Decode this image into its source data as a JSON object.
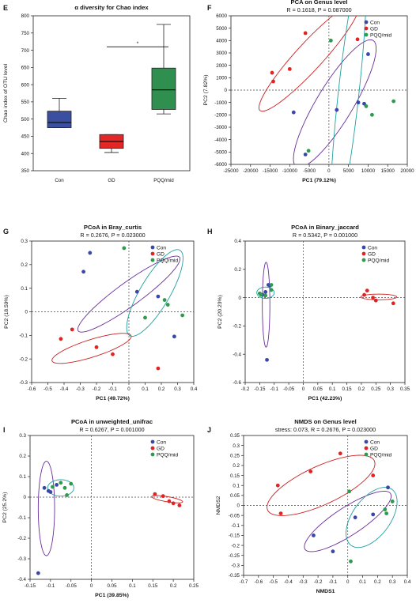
{
  "colors": {
    "Con": "#3a47a8",
    "GD": "#e02424",
    "PQQ/mid": "#2e9a4e",
    "Con_box": "#3b4fa0",
    "GD_box": "#e32626",
    "PQQ_box": "#2f8f4f",
    "ellipse_Con": "#6a2d9a",
    "ellipse_GD": "#cc2020",
    "ellipse_PQQ": "#1fa0a0"
  },
  "chart_data": [
    {
      "letter": "E",
      "type": "box",
      "title": "α diversity for Chao index",
      "subtitle": "",
      "ylabel": "Chao index of OTU level",
      "xlabel": "",
      "ylim": [
        350,
        800
      ],
      "yticks": [
        350,
        400,
        450,
        500,
        550,
        600,
        650,
        700,
        750,
        800
      ],
      "categories": [
        "Con",
        "GD",
        "PQQ/mid"
      ],
      "boxes": [
        {
          "group": "Con",
          "min": 475,
          "q1": 475,
          "median": 490,
          "q3": 523,
          "max": 560
        },
        {
          "group": "GD",
          "min": 403,
          "q1": 415,
          "median": 435,
          "q3": 455,
          "max": 455
        },
        {
          "group": "PQQ/mid",
          "min": 515,
          "q1": 528,
          "median": 585,
          "q3": 648,
          "max": 775
        }
      ],
      "significance": {
        "from": "GD",
        "to": "PQQ/mid",
        "y": 710,
        "label": "*"
      }
    },
    {
      "letter": "F",
      "type": "scatter",
      "title": "PCA on Genus level",
      "subtitle": "R = 0.1618, P = 0.087000",
      "xlabel": "PC1 (79.12%)",
      "ylabel": "PC2 (7.82%)",
      "xlim": [
        -25000,
        20000
      ],
      "ylim": [
        -6000,
        6000
      ],
      "xticks": [
        -25000,
        -20000,
        -15000,
        -10000,
        -5000,
        0,
        5000,
        10000,
        15000,
        20000
      ],
      "yticks": [
        -6000,
        -5000,
        -4000,
        -3000,
        -2000,
        -1000,
        0,
        1000,
        2000,
        3000,
        4000,
        5000,
        6000
      ],
      "legend": [
        "Con",
        "GD",
        "PQQ/mid"
      ],
      "points": {
        "Con": [
          [
            10000,
            2900
          ],
          [
            -9000,
            -1800
          ],
          [
            2000,
            -1600
          ],
          [
            7500,
            -1000
          ],
          [
            9000,
            -1100
          ],
          [
            -6000,
            -5200
          ]
        ],
        "GD": [
          [
            -6000,
            4600
          ],
          [
            -10000,
            1700
          ],
          [
            -14500,
            1400
          ],
          [
            -14200,
            700
          ],
          [
            7300,
            4100
          ]
        ],
        "PQQ/mid": [
          [
            500,
            4000
          ],
          [
            16500,
            -900
          ],
          [
            11000,
            -2000
          ],
          [
            9500,
            -1300
          ],
          [
            -5200,
            -4900
          ]
        ]
      },
      "ellipses": [
        {
          "group": "GD",
          "cx": -5000,
          "cy": 2700,
          "rx": 13500,
          "ry": 1500,
          "angle_deg": 18
        },
        {
          "group": "Con",
          "cx": 1500,
          "cy": -1100,
          "rx": 11500,
          "ry": 2400,
          "angle_deg": 24
        },
        {
          "group": "PQQ/mid",
          "cx": 5000,
          "cy": -300,
          "rx": 11500,
          "ry": 2500,
          "angle_deg": 70
        }
      ]
    },
    {
      "letter": "G",
      "type": "scatter",
      "title": "PCoA in Bray_curtis",
      "subtitle": "R = 0.2676, P = 0.023000",
      "xlabel": "PC1 (49.72%)",
      "ylabel": "PC2 (18.59%)",
      "xlim": [
        -0.6,
        0.4
      ],
      "ylim": [
        -0.3,
        0.3
      ],
      "xticks": [
        -0.6,
        -0.5,
        -0.4,
        -0.3,
        -0.2,
        -0.1,
        0,
        0.1,
        0.2,
        0.3,
        0.4
      ],
      "yticks": [
        -0.3,
        -0.2,
        -0.1,
        0,
        0.1,
        0.2,
        0.3
      ],
      "legend": [
        "Con",
        "GD",
        "PQQ/mid"
      ],
      "points": {
        "Con": [
          [
            -0.24,
            0.25
          ],
          [
            -0.28,
            0.17
          ],
          [
            0.05,
            0.085
          ],
          [
            0.18,
            0.065
          ],
          [
            0.28,
            -0.105
          ]
        ],
        "GD": [
          [
            -0.35,
            -0.075
          ],
          [
            -0.42,
            -0.115
          ],
          [
            -0.2,
            -0.15
          ],
          [
            -0.1,
            -0.18
          ],
          [
            0.18,
            -0.24
          ]
        ],
        "PQQ/mid": [
          [
            -0.03,
            0.27
          ],
          [
            0.22,
            0.05
          ],
          [
            0.24,
            0.03
          ],
          [
            0.33,
            -0.015
          ],
          [
            0.1,
            -0.025
          ]
        ]
      },
      "ellipses": [
        {
          "group": "Con",
          "cx": 0.0,
          "cy": 0.075,
          "rx": 0.35,
          "ry": 0.055,
          "angle_deg": 26
        },
        {
          "group": "GD",
          "cx": -0.23,
          "cy": -0.155,
          "rx": 0.25,
          "ry": 0.038,
          "angle_deg": 12
        },
        {
          "group": "PQQ/mid",
          "cx": 0.16,
          "cy": 0.08,
          "rx": 0.24,
          "ry": 0.08,
          "angle_deg": 47
        }
      ]
    },
    {
      "letter": "H",
      "type": "scatter",
      "title": "PCoA in Binary_jaccard",
      "subtitle": "R = 0.5342, P = 0.001000",
      "xlabel": "PC1 (42.23%)",
      "ylabel": "PC2 (20.23%)",
      "xlim": [
        -0.2,
        0.35
      ],
      "ylim": [
        -0.6,
        0.4
      ],
      "xticks": [
        -0.2,
        -0.15,
        -0.1,
        -0.05,
        0,
        0.05,
        0.1,
        0.15,
        0.2,
        0.25,
        0.3,
        0.35
      ],
      "yticks": [
        -0.6,
        -0.4,
        -0.2,
        0,
        0.2,
        0.4
      ],
      "legend": [
        "Con",
        "GD",
        "PQQ/mid"
      ],
      "points": {
        "Con": [
          [
            -0.12,
            0.09
          ],
          [
            -0.115,
            0.085
          ],
          [
            -0.13,
            0.04
          ],
          [
            -0.14,
            0.02
          ],
          [
            -0.125,
            -0.44
          ]
        ],
        "GD": [
          [
            0.22,
            0.05
          ],
          [
            0.21,
            0.02
          ],
          [
            0.25,
            -0.02
          ],
          [
            0.24,
            0.0
          ],
          [
            0.31,
            -0.04
          ]
        ],
        "PQQ/mid": [
          [
            -0.11,
            0.09
          ],
          [
            -0.145,
            0.02
          ],
          [
            -0.13,
            0.015
          ],
          [
            -0.15,
            0.03
          ],
          [
            -0.11,
            0.055
          ]
        ]
      },
      "ellipses": [
        {
          "group": "Con",
          "cx": -0.128,
          "cy": -0.05,
          "rx": 0.013,
          "ry": 0.3,
          "angle_deg": 0
        },
        {
          "group": "PQQ/mid",
          "cx": -0.13,
          "cy": 0.035,
          "rx": 0.03,
          "ry": 0.04,
          "angle_deg": 0
        },
        {
          "group": "GD",
          "cx": 0.26,
          "cy": 0.005,
          "rx": 0.062,
          "ry": 0.02,
          "angle_deg": 0
        }
      ]
    },
    {
      "letter": "I",
      "type": "scatter",
      "title": "PCoA in unweighted_unifrac",
      "subtitle": "R = 0.6267, P = 0.001000",
      "xlabel": "PC1 (39.85%)",
      "ylabel": "PC2 (25.2%)",
      "xlim": [
        -0.15,
        0.25
      ],
      "ylim": [
        -0.4,
        0.3
      ],
      "xticks": [
        -0.15,
        -0.1,
        -0.05,
        0,
        0.05,
        0.1,
        0.15,
        0.2,
        0.25
      ],
      "yticks": [
        -0.4,
        -0.3,
        -0.2,
        -0.1,
        0,
        0.1,
        0.2,
        0.3
      ],
      "legend": [
        "Con",
        "GD",
        "PQQ/mid"
      ],
      "points": {
        "Con": [
          [
            -0.115,
            0.045
          ],
          [
            -0.105,
            0.03
          ],
          [
            -0.1,
            0.025
          ],
          [
            -0.085,
            0.06
          ],
          [
            -0.13,
            -0.37
          ]
        ],
        "GD": [
          [
            0.155,
            0.015
          ],
          [
            0.175,
            0.005
          ],
          [
            0.19,
            -0.02
          ],
          [
            0.2,
            -0.03
          ],
          [
            0.215,
            -0.04
          ]
        ],
        "PQQ/mid": [
          [
            -0.095,
            0.05
          ],
          [
            -0.075,
            0.07
          ],
          [
            -0.065,
            0.045
          ],
          [
            -0.05,
            0.065
          ],
          [
            -0.06,
            0.01
          ]
        ]
      },
      "ellipses": [
        {
          "group": "Con",
          "cx": -0.11,
          "cy": -0.055,
          "rx": 0.02,
          "ry": 0.23,
          "angle_deg": 0
        },
        {
          "group": "PQQ/mid",
          "cx": -0.075,
          "cy": 0.045,
          "rx": 0.032,
          "ry": 0.04,
          "angle_deg": 0
        },
        {
          "group": "GD",
          "cx": 0.185,
          "cy": -0.01,
          "rx": 0.04,
          "ry": 0.012,
          "angle_deg": -20
        }
      ]
    },
    {
      "letter": "J",
      "type": "scatter",
      "title": "NMDS on Genus level",
      "subtitle": "stress: 0.073, R = 0.2676, P = 0.023000",
      "xlabel": "NMDS1",
      "ylabel": "NMDS2",
      "xlim": [
        -0.7,
        0.4
      ],
      "ylim": [
        -0.35,
        0.35
      ],
      "xticks": [
        -0.7,
        -0.6,
        -0.5,
        -0.4,
        -0.3,
        -0.2,
        -0.1,
        0,
        0.1,
        0.2,
        0.3,
        0.4
      ],
      "yticks": [
        -0.35,
        -0.3,
        -0.25,
        -0.2,
        -0.15,
        -0.1,
        -0.05,
        0,
        0.05,
        0.1,
        0.15,
        0.2,
        0.25,
        0.3,
        0.35
      ],
      "legend": [
        "Con",
        "GD",
        "PQQ/mid"
      ],
      "points": {
        "Con": [
          [
            0.27,
            0.09
          ],
          [
            0.17,
            -0.045
          ],
          [
            0.05,
            -0.06
          ],
          [
            -0.23,
            -0.15
          ],
          [
            -0.1,
            -0.23
          ]
        ],
        "GD": [
          [
            -0.47,
            0.1
          ],
          [
            -0.25,
            0.17
          ],
          [
            -0.05,
            0.26
          ],
          [
            -0.45,
            -0.04
          ],
          [
            0.17,
            0.15
          ]
        ],
        "PQQ/mid": [
          [
            0.01,
            0.07
          ],
          [
            0.3,
            0.02
          ],
          [
            0.26,
            -0.04
          ],
          [
            0.25,
            -0.02
          ],
          [
            0.02,
            -0.28
          ]
        ]
      },
      "ellipses": [
        {
          "group": "GD",
          "cx": -0.18,
          "cy": 0.1,
          "rx": 0.38,
          "ry": 0.1,
          "angle_deg": 18
        },
        {
          "group": "Con",
          "cx": 0.0,
          "cy": -0.08,
          "rx": 0.32,
          "ry": 0.075,
          "angle_deg": 25
        },
        {
          "group": "PQQ/mid",
          "cx": 0.16,
          "cy": -0.06,
          "rx": 0.2,
          "ry": 0.11,
          "angle_deg": 38
        }
      ]
    }
  ]
}
